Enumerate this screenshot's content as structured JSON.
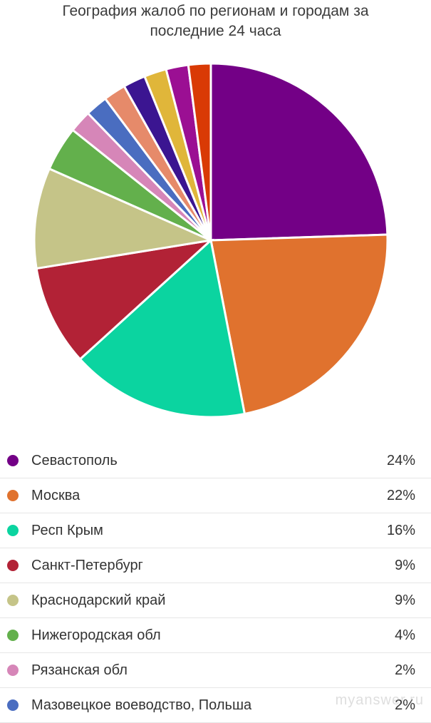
{
  "chart_data": {
    "type": "pie",
    "title_lines": [
      "География жалоб по регионам и городам за",
      "последние 24 часа"
    ],
    "slices": [
      {
        "label": "Севастополь",
        "value": 24,
        "value_label": "24%",
        "color": "#730086"
      },
      {
        "label": "Москва",
        "value": 22,
        "value_label": "22%",
        "color": "#e0722e"
      },
      {
        "label": "Респ Крым",
        "value": 16,
        "value_label": "16%",
        "color": "#0bd4a0"
      },
      {
        "label": "Санкт-Петербург",
        "value": 9,
        "value_label": "9%",
        "color": "#b22236"
      },
      {
        "label": "Краснодарский край",
        "value": 9,
        "value_label": "9%",
        "color": "#c5c488"
      },
      {
        "label": "Нижегородская обл",
        "value": 4,
        "value_label": "4%",
        "color": "#63b04c"
      },
      {
        "label": "Рязанская обл",
        "value": 2,
        "value_label": "2%",
        "color": "#d686b8"
      },
      {
        "label": "Мазовецкое воеводство, Польша",
        "value": 2,
        "value_label": "2%",
        "color": "#4a6dc0"
      },
      {
        "value": 2,
        "color": "#e68a6a"
      },
      {
        "value": 2,
        "color": "#3b1591"
      },
      {
        "value": 2,
        "color": "#e0b63a"
      },
      {
        "value": 2,
        "color": "#9b0f93"
      },
      {
        "value": 2,
        "color": "#d93a05"
      }
    ],
    "legend_placement": "bottom"
  },
  "watermark": "myanswer.ru"
}
